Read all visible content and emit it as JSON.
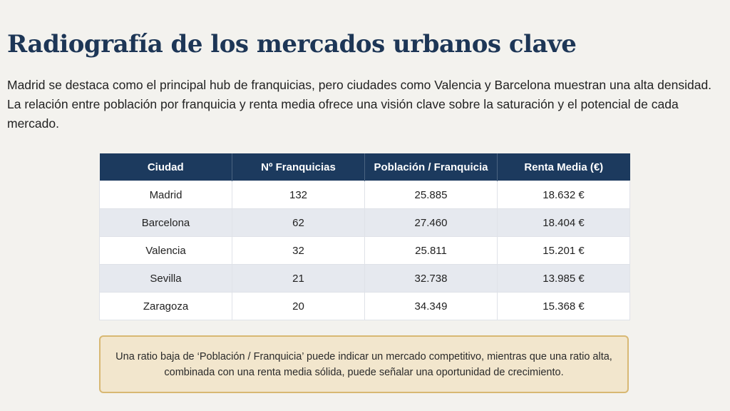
{
  "title": "Radiografía de los mercados urbanos clave",
  "intro": "Madrid se destaca como el principal hub de franquicias, pero ciudades como Valencia y Barcelona muestran una alta densidad. La relación entre población por franquicia y renta media ofrece una visión clave sobre la saturación y el potencial de cada mercado.",
  "table": {
    "headers": [
      "Ciudad",
      "Nº Franquicias",
      "Población / Franquicia",
      "Renta Media (€)"
    ],
    "rows": [
      [
        "Madrid",
        "132",
        "25.885",
        "18.632 €"
      ],
      [
        "Barcelona",
        "62",
        "27.460",
        "18.404 €"
      ],
      [
        "Valencia",
        "32",
        "25.811",
        "15.201 €"
      ],
      [
        "Sevilla",
        "21",
        "32.738",
        "13.985 €"
      ],
      [
        "Zaragoza",
        "20",
        "34.349",
        "15.368 €"
      ]
    ]
  },
  "note": "Una ratio baja de ‘Población / Franquicia’ puede indicar un mercado competitivo, mientras que una ratio alta, combinada con una renta media sólida, puede señalar una oportunidad de crecimiento.",
  "colors": {
    "header_bg": "#1c3a5e",
    "title": "#1d3656",
    "note_bg": "#f2e6cd",
    "note_border": "#d8b873"
  }
}
